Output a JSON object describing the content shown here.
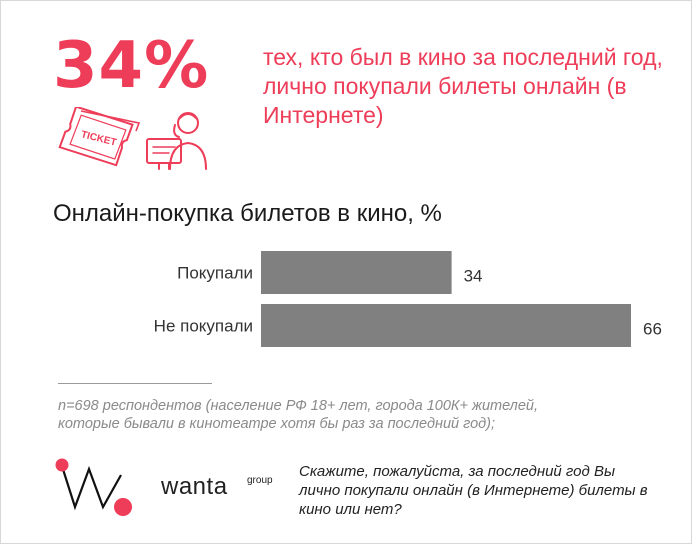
{
  "headline": {
    "percent": "34%",
    "text": "тех, кто был в кино за последний год, лично покупали билеты онлайн (в Интернете)",
    "ticket_label": "TICKET"
  },
  "chart_data": {
    "type": "bar",
    "orientation": "horizontal",
    "title": "Онлайн-покупка билетов в кино, %",
    "categories": [
      "Покупали",
      "Не покупали"
    ],
    "values": [
      34,
      66
    ],
    "data_labels": [
      "34",
      "66"
    ],
    "xlim": [
      0,
      66
    ],
    "grid": false,
    "bar_color": "#808080"
  },
  "footnote": {
    "text": "n=698  респондентов (население РФ 18+ лет, города 100К+ жителей, которые бывали в кинотеатре хотя бы раз за последний год);"
  },
  "brand": {
    "name": "wanta",
    "suffix": "group",
    "accent_color": "#ee3d59"
  },
  "question": {
    "text": "Скажите, пожалуйста, за последний год Вы лично покупали онлайн (в Интернете) билеты в кино или нет?"
  }
}
